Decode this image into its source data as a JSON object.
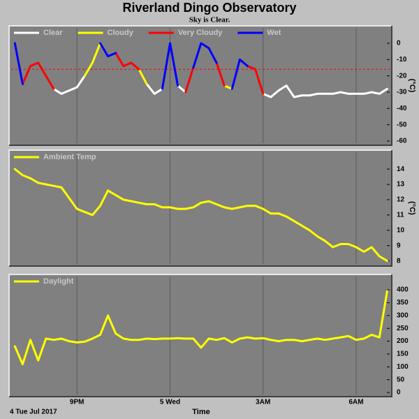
{
  "title": "Riverland Dingo Observatory",
  "subtitle": "Sky is Clear.",
  "date_label": "4 Tue Jul 2017",
  "x_label": "Time",
  "chart_data": [
    {
      "type": "line",
      "y_label": "(°C)",
      "x": [
        19.0,
        19.25,
        19.5,
        19.75,
        20.0,
        20.25,
        20.5,
        20.75,
        21.0,
        21.25,
        21.5,
        21.75,
        22.0,
        22.25,
        22.5,
        22.75,
        23.0,
        23.25,
        23.5,
        23.75,
        24.0,
        24.25,
        24.5,
        24.75,
        25.0,
        25.25,
        25.5,
        25.75,
        26.0,
        26.25,
        26.5,
        26.75,
        27.0,
        27.25,
        27.5,
        27.75,
        28.0,
        28.25,
        28.5,
        28.75,
        29.0,
        29.25,
        29.5,
        29.75,
        30.0,
        30.25,
        30.5,
        30.75,
        31.0
      ],
      "xlim": [
        18.88,
        31.08
      ],
      "xticks": [
        21,
        24,
        27,
        30
      ],
      "ylim": [
        -61.3,
        9.4
      ],
      "yticks": [
        0,
        -10,
        -20,
        -30,
        -40,
        -50,
        -60
      ],
      "hline": {
        "value": -16,
        "color": "#ff0000"
      },
      "series": [
        {
          "name": "Clear",
          "color": "#ffffff",
          "values": [
            null,
            null,
            null,
            null,
            null,
            -28,
            -31,
            -29,
            -27,
            -20,
            null,
            null,
            null,
            null,
            null,
            null,
            null,
            -25,
            -31,
            -28,
            null,
            -26,
            -30,
            null,
            null,
            null,
            null,
            null,
            null,
            null,
            null,
            null,
            -31,
            -33,
            -29,
            -26,
            -33,
            -32,
            -32,
            -31,
            -31,
            -31,
            -30,
            -31,
            -31,
            -31,
            -30,
            -31,
            -28
          ]
        },
        {
          "name": "Cloudy",
          "color": "#ffff00",
          "values": [
            null,
            null,
            null,
            null,
            null,
            null,
            null,
            null,
            null,
            -20,
            -12,
            0,
            null,
            null,
            null,
            null,
            -16,
            -25,
            null,
            null,
            null,
            null,
            null,
            null,
            null,
            null,
            null,
            -26,
            -28,
            null,
            null,
            null,
            null,
            null,
            null,
            null,
            null,
            null,
            null,
            null,
            null,
            null,
            null,
            null,
            null,
            null,
            null,
            null,
            null
          ]
        },
        {
          "name": "Very Cloudy",
          "color": "#ff0000",
          "values": [
            null,
            -25,
            -14,
            -12,
            -20,
            -28,
            null,
            null,
            null,
            null,
            null,
            null,
            null,
            -6,
            -14,
            -12,
            -16,
            null,
            null,
            null,
            null,
            null,
            -30,
            -15,
            null,
            null,
            -12,
            -26,
            null,
            null,
            -14,
            -16,
            -31,
            null,
            null,
            null,
            null,
            null,
            null,
            null,
            null,
            null,
            null,
            null,
            null,
            null,
            null,
            null,
            null
          ]
        },
        {
          "name": "Wet",
          "color": "#0000ff",
          "values": [
            0,
            -25,
            null,
            null,
            null,
            null,
            null,
            null,
            null,
            null,
            null,
            0,
            -8,
            -6,
            null,
            null,
            null,
            null,
            null,
            -28,
            0,
            -26,
            null,
            -15,
            0,
            -3,
            -12,
            null,
            -28,
            -10,
            -14,
            null,
            null,
            null,
            null,
            null,
            null,
            null,
            null,
            null,
            null,
            null,
            null,
            null,
            null,
            null,
            null,
            null,
            null
          ]
        }
      ]
    },
    {
      "type": "line",
      "y_label": "(°C)",
      "x": [
        19.0,
        19.25,
        19.5,
        19.75,
        20.0,
        20.25,
        20.5,
        20.75,
        21.0,
        21.25,
        21.5,
        21.75,
        22.0,
        22.25,
        22.5,
        22.75,
        23.0,
        23.25,
        23.5,
        23.75,
        24.0,
        24.25,
        24.5,
        24.75,
        25.0,
        25.25,
        25.5,
        25.75,
        26.0,
        26.25,
        26.5,
        26.75,
        27.0,
        27.25,
        27.5,
        27.75,
        28.0,
        28.25,
        28.5,
        28.75,
        29.0,
        29.25,
        29.5,
        29.75,
        30.0,
        30.25,
        30.5,
        30.75,
        31.0
      ],
      "xlim": [
        18.88,
        31.08
      ],
      "xticks": [
        21,
        24,
        27,
        30
      ],
      "ylim": [
        7.8,
        15.1
      ],
      "yticks": [
        14,
        13,
        12,
        11,
        10,
        9,
        8
      ],
      "series": [
        {
          "name": "Ambient Temp",
          "color": "#ffff00",
          "values": [
            14.0,
            13.6,
            13.4,
            13.1,
            13.0,
            12.9,
            12.8,
            12.1,
            11.4,
            11.2,
            11.0,
            11.6,
            12.6,
            12.3,
            12.0,
            11.9,
            11.8,
            11.7,
            11.7,
            11.5,
            11.5,
            11.4,
            11.4,
            11.5,
            11.8,
            11.9,
            11.7,
            11.5,
            11.4,
            11.5,
            11.6,
            11.6,
            11.4,
            11.1,
            11.1,
            10.9,
            10.6,
            10.3,
            10.0,
            9.6,
            9.3,
            8.9,
            9.1,
            9.1,
            8.9,
            8.6,
            8.9,
            8.3,
            8.0
          ]
        }
      ]
    },
    {
      "type": "line",
      "x": [
        19.0,
        19.25,
        19.5,
        19.75,
        20.0,
        20.25,
        20.5,
        20.75,
        21.0,
        21.25,
        21.5,
        21.75,
        22.0,
        22.25,
        22.5,
        22.75,
        23.0,
        23.25,
        23.5,
        23.75,
        24.0,
        24.25,
        24.5,
        24.75,
        25.0,
        25.25,
        25.5,
        25.75,
        26.0,
        26.25,
        26.5,
        26.75,
        27.0,
        27.25,
        27.5,
        27.75,
        28.0,
        28.25,
        28.5,
        28.75,
        29.0,
        29.25,
        29.5,
        29.75,
        30.0,
        30.25,
        30.5,
        30.75,
        31.0
      ],
      "xlim": [
        18.88,
        31.08
      ],
      "xticks": [
        {
          "value": 21,
          "label": "9PM"
        },
        {
          "value": 24,
          "label": "5 Wed"
        },
        {
          "value": 27,
          "label": "3AM"
        },
        {
          "value": 30,
          "label": "6AM"
        }
      ],
      "ylim": [
        -8,
        452
      ],
      "yticks": [
        400,
        350,
        300,
        250,
        200,
        150,
        100,
        50,
        0
      ],
      "series": [
        {
          "name": "Daylight",
          "color": "#ffff00",
          "values": [
            180,
            110,
            205,
            125,
            210,
            205,
            210,
            200,
            195,
            198,
            210,
            225,
            300,
            230,
            210,
            205,
            205,
            210,
            208,
            210,
            210,
            212,
            210,
            210,
            175,
            210,
            205,
            212,
            195,
            210,
            215,
            210,
            212,
            205,
            200,
            205,
            205,
            200,
            205,
            210,
            205,
            210,
            215,
            220,
            205,
            210,
            225,
            215,
            395
          ]
        }
      ]
    }
  ]
}
